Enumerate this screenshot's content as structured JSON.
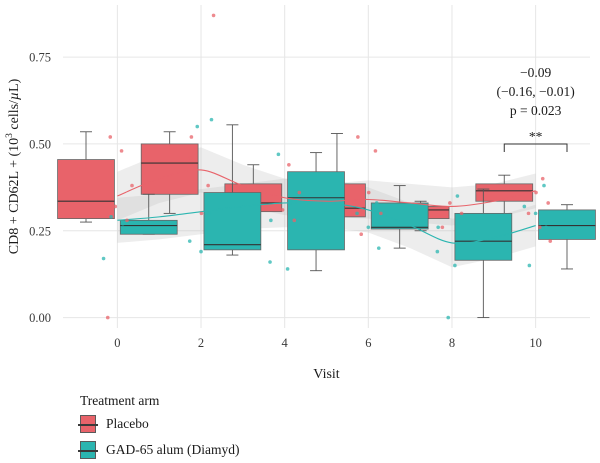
{
  "chart_data": {
    "type": "box",
    "xlabel": "Visit",
    "ylabel": "CD8 + CD62L + (10³ cells/µL)",
    "ylabel_parts": {
      "pre": "CD8 + CD62L + (10",
      "sup": "3",
      "post": " cells/",
      "mu": "µ",
      "end": "L)"
    },
    "categories": [
      "0",
      "2",
      "4",
      "6",
      "8",
      "10"
    ],
    "ylim": [
      -0.03,
      0.9
    ],
    "yticks": [
      "0.00",
      "0.25",
      "0.50",
      "0.75"
    ],
    "grid": true,
    "legend_position": "bottom",
    "series": [
      {
        "name": "Placebo",
        "color": "#E8636A",
        "boxes": [
          {
            "visit": 0,
            "q1": 0.285,
            "median": 0.335,
            "q3": 0.455,
            "whisker_low": 0.275,
            "whisker_high": 0.535
          },
          {
            "visit": 2,
            "q1": 0.355,
            "median": 0.445,
            "q3": 0.5,
            "whisker_low": 0.3,
            "whisker_high": 0.535
          },
          {
            "visit": 4,
            "q1": 0.305,
            "median": 0.33,
            "q3": 0.385,
            "whisker_low": 0.26,
            "whisker_high": 0.44
          },
          {
            "visit": 6,
            "q1": 0.29,
            "median": 0.315,
            "q3": 0.385,
            "whisker_low": 0.235,
            "whisker_high": 0.53
          },
          {
            "visit": 8,
            "q1": 0.285,
            "median": 0.31,
            "q3": 0.32,
            "whisker_low": 0.25,
            "whisker_high": 0.335
          },
          {
            "visit": 10,
            "q1": 0.335,
            "median": 0.365,
            "q3": 0.385,
            "whisker_low": 0.25,
            "whisker_high": 0.41
          }
        ],
        "trend": [
          [
            0,
            0.35
          ],
          [
            1,
            0.4
          ],
          [
            2,
            0.425
          ],
          [
            3,
            0.38
          ],
          [
            4,
            0.345
          ],
          [
            5,
            0.335
          ],
          [
            6,
            0.34
          ],
          [
            7,
            0.33
          ],
          [
            8,
            0.32
          ],
          [
            9,
            0.335
          ],
          [
            10,
            0.365
          ]
        ],
        "band_low": [
          [
            0,
            0.28
          ],
          [
            1,
            0.33
          ],
          [
            2,
            0.36
          ],
          [
            3,
            0.32
          ],
          [
            4,
            0.295
          ],
          [
            5,
            0.29
          ],
          [
            6,
            0.285
          ],
          [
            7,
            0.275
          ],
          [
            8,
            0.265
          ],
          [
            9,
            0.285
          ],
          [
            10,
            0.315
          ]
        ],
        "band_high": [
          [
            0,
            0.42
          ],
          [
            1,
            0.47
          ],
          [
            2,
            0.49
          ],
          [
            3,
            0.44
          ],
          [
            4,
            0.4
          ],
          [
            5,
            0.385
          ],
          [
            6,
            0.395
          ],
          [
            7,
            0.385
          ],
          [
            8,
            0.375
          ],
          [
            9,
            0.385
          ],
          [
            10,
            0.415
          ]
        ],
        "points": [
          [
            0,
            0.0
          ],
          [
            0,
            0.28
          ],
          [
            0,
            0.32
          ],
          [
            0,
            0.38
          ],
          [
            0,
            0.48
          ],
          [
            0,
            0.52
          ],
          [
            2,
            0.87
          ],
          [
            2,
            0.3
          ],
          [
            2,
            0.38
          ],
          [
            2,
            0.46
          ],
          [
            2,
            0.52
          ],
          [
            4,
            0.28
          ],
          [
            4,
            0.31
          ],
          [
            4,
            0.36
          ],
          [
            4,
            0.44
          ],
          [
            6,
            0.24
          ],
          [
            6,
            0.3
          ],
          [
            6,
            0.36
          ],
          [
            6,
            0.48
          ],
          [
            6,
            0.52
          ],
          [
            8,
            0.26
          ],
          [
            8,
            0.3
          ],
          [
            8,
            0.33
          ],
          [
            10,
            0.22
          ],
          [
            10,
            0.26
          ],
          [
            10,
            0.3
          ],
          [
            10,
            0.33
          ],
          [
            10,
            0.36
          ],
          [
            10,
            0.4
          ]
        ]
      },
      {
        "name": "GAD-65 alum (Diamyd)",
        "color": "#2BB5B0",
        "boxes": [
          {
            "visit": 0,
            "q1": 0.24,
            "median": 0.265,
            "q3": 0.28,
            "whisker_low": 0.24,
            "whisker_high": 0.355
          },
          {
            "visit": 2,
            "q1": 0.195,
            "median": 0.21,
            "q3": 0.36,
            "whisker_low": 0.18,
            "whisker_high": 0.555
          },
          {
            "visit": 4,
            "q1": 0.195,
            "median": 0.345,
            "q3": 0.42,
            "whisker_low": 0.135,
            "whisker_high": 0.475
          },
          {
            "visit": 6,
            "q1": 0.255,
            "median": 0.26,
            "q3": 0.33,
            "whisker_low": 0.2,
            "whisker_high": 0.38
          },
          {
            "visit": 8,
            "q1": 0.165,
            "median": 0.22,
            "q3": 0.3,
            "whisker_low": 0.0,
            "whisker_high": 0.37
          },
          {
            "visit": 10,
            "q1": 0.225,
            "median": 0.265,
            "q3": 0.31,
            "whisker_low": 0.14,
            "whisker_high": 0.325
          }
        ],
        "trend": [
          [
            0,
            0.28
          ],
          [
            1,
            0.29
          ],
          [
            2,
            0.305
          ],
          [
            3,
            0.32
          ],
          [
            4,
            0.33
          ],
          [
            5,
            0.33
          ],
          [
            6,
            0.31
          ],
          [
            7,
            0.265
          ],
          [
            8,
            0.215
          ],
          [
            9,
            0.23
          ],
          [
            10,
            0.265
          ]
        ],
        "band_low": [
          [
            0,
            0.215
          ],
          [
            1,
            0.225
          ],
          [
            2,
            0.24
          ],
          [
            3,
            0.255
          ],
          [
            4,
            0.26
          ],
          [
            5,
            0.26
          ],
          [
            6,
            0.245
          ],
          [
            7,
            0.2
          ],
          [
            8,
            0.145
          ],
          [
            9,
            0.17
          ],
          [
            10,
            0.205
          ]
        ],
        "band_high": [
          [
            0,
            0.345
          ],
          [
            1,
            0.355
          ],
          [
            2,
            0.37
          ],
          [
            3,
            0.385
          ],
          [
            4,
            0.4
          ],
          [
            5,
            0.4
          ],
          [
            6,
            0.375
          ],
          [
            7,
            0.33
          ],
          [
            8,
            0.285
          ],
          [
            9,
            0.29
          ],
          [
            10,
            0.325
          ]
        ],
        "points": [
          [
            0,
            0.17
          ],
          [
            0,
            0.27
          ],
          [
            0,
            0.29
          ],
          [
            2,
            0.57
          ],
          [
            2,
            0.19
          ],
          [
            2,
            0.22
          ],
          [
            2,
            0.3
          ],
          [
            2,
            0.55
          ],
          [
            4,
            0.14
          ],
          [
            4,
            0.16
          ],
          [
            4,
            0.28
          ],
          [
            4,
            0.33
          ],
          [
            4,
            0.47
          ],
          [
            6,
            0.2
          ],
          [
            6,
            0.26
          ],
          [
            6,
            0.3
          ],
          [
            6,
            0.33
          ],
          [
            8,
            0.0
          ],
          [
            8,
            0.15
          ],
          [
            8,
            0.19
          ],
          [
            8,
            0.26
          ],
          [
            8,
            0.35
          ],
          [
            10,
            0.15
          ],
          [
            10,
            0.26
          ],
          [
            10,
            0.3
          ],
          [
            10,
            0.32
          ],
          [
            10,
            0.38
          ]
        ]
      }
    ],
    "annotation": {
      "at_visit": 10,
      "lines": [
        "−0.09",
        "(−0.16, −0.01)",
        "p = 0.023"
      ],
      "significance": "**"
    }
  },
  "legend": {
    "title": "Treatment arm",
    "items": [
      {
        "label": "Placebo",
        "color": "#E8636A"
      },
      {
        "label": "GAD-65 alum (Diamyd)",
        "color": "#2BB5B0"
      }
    ]
  }
}
